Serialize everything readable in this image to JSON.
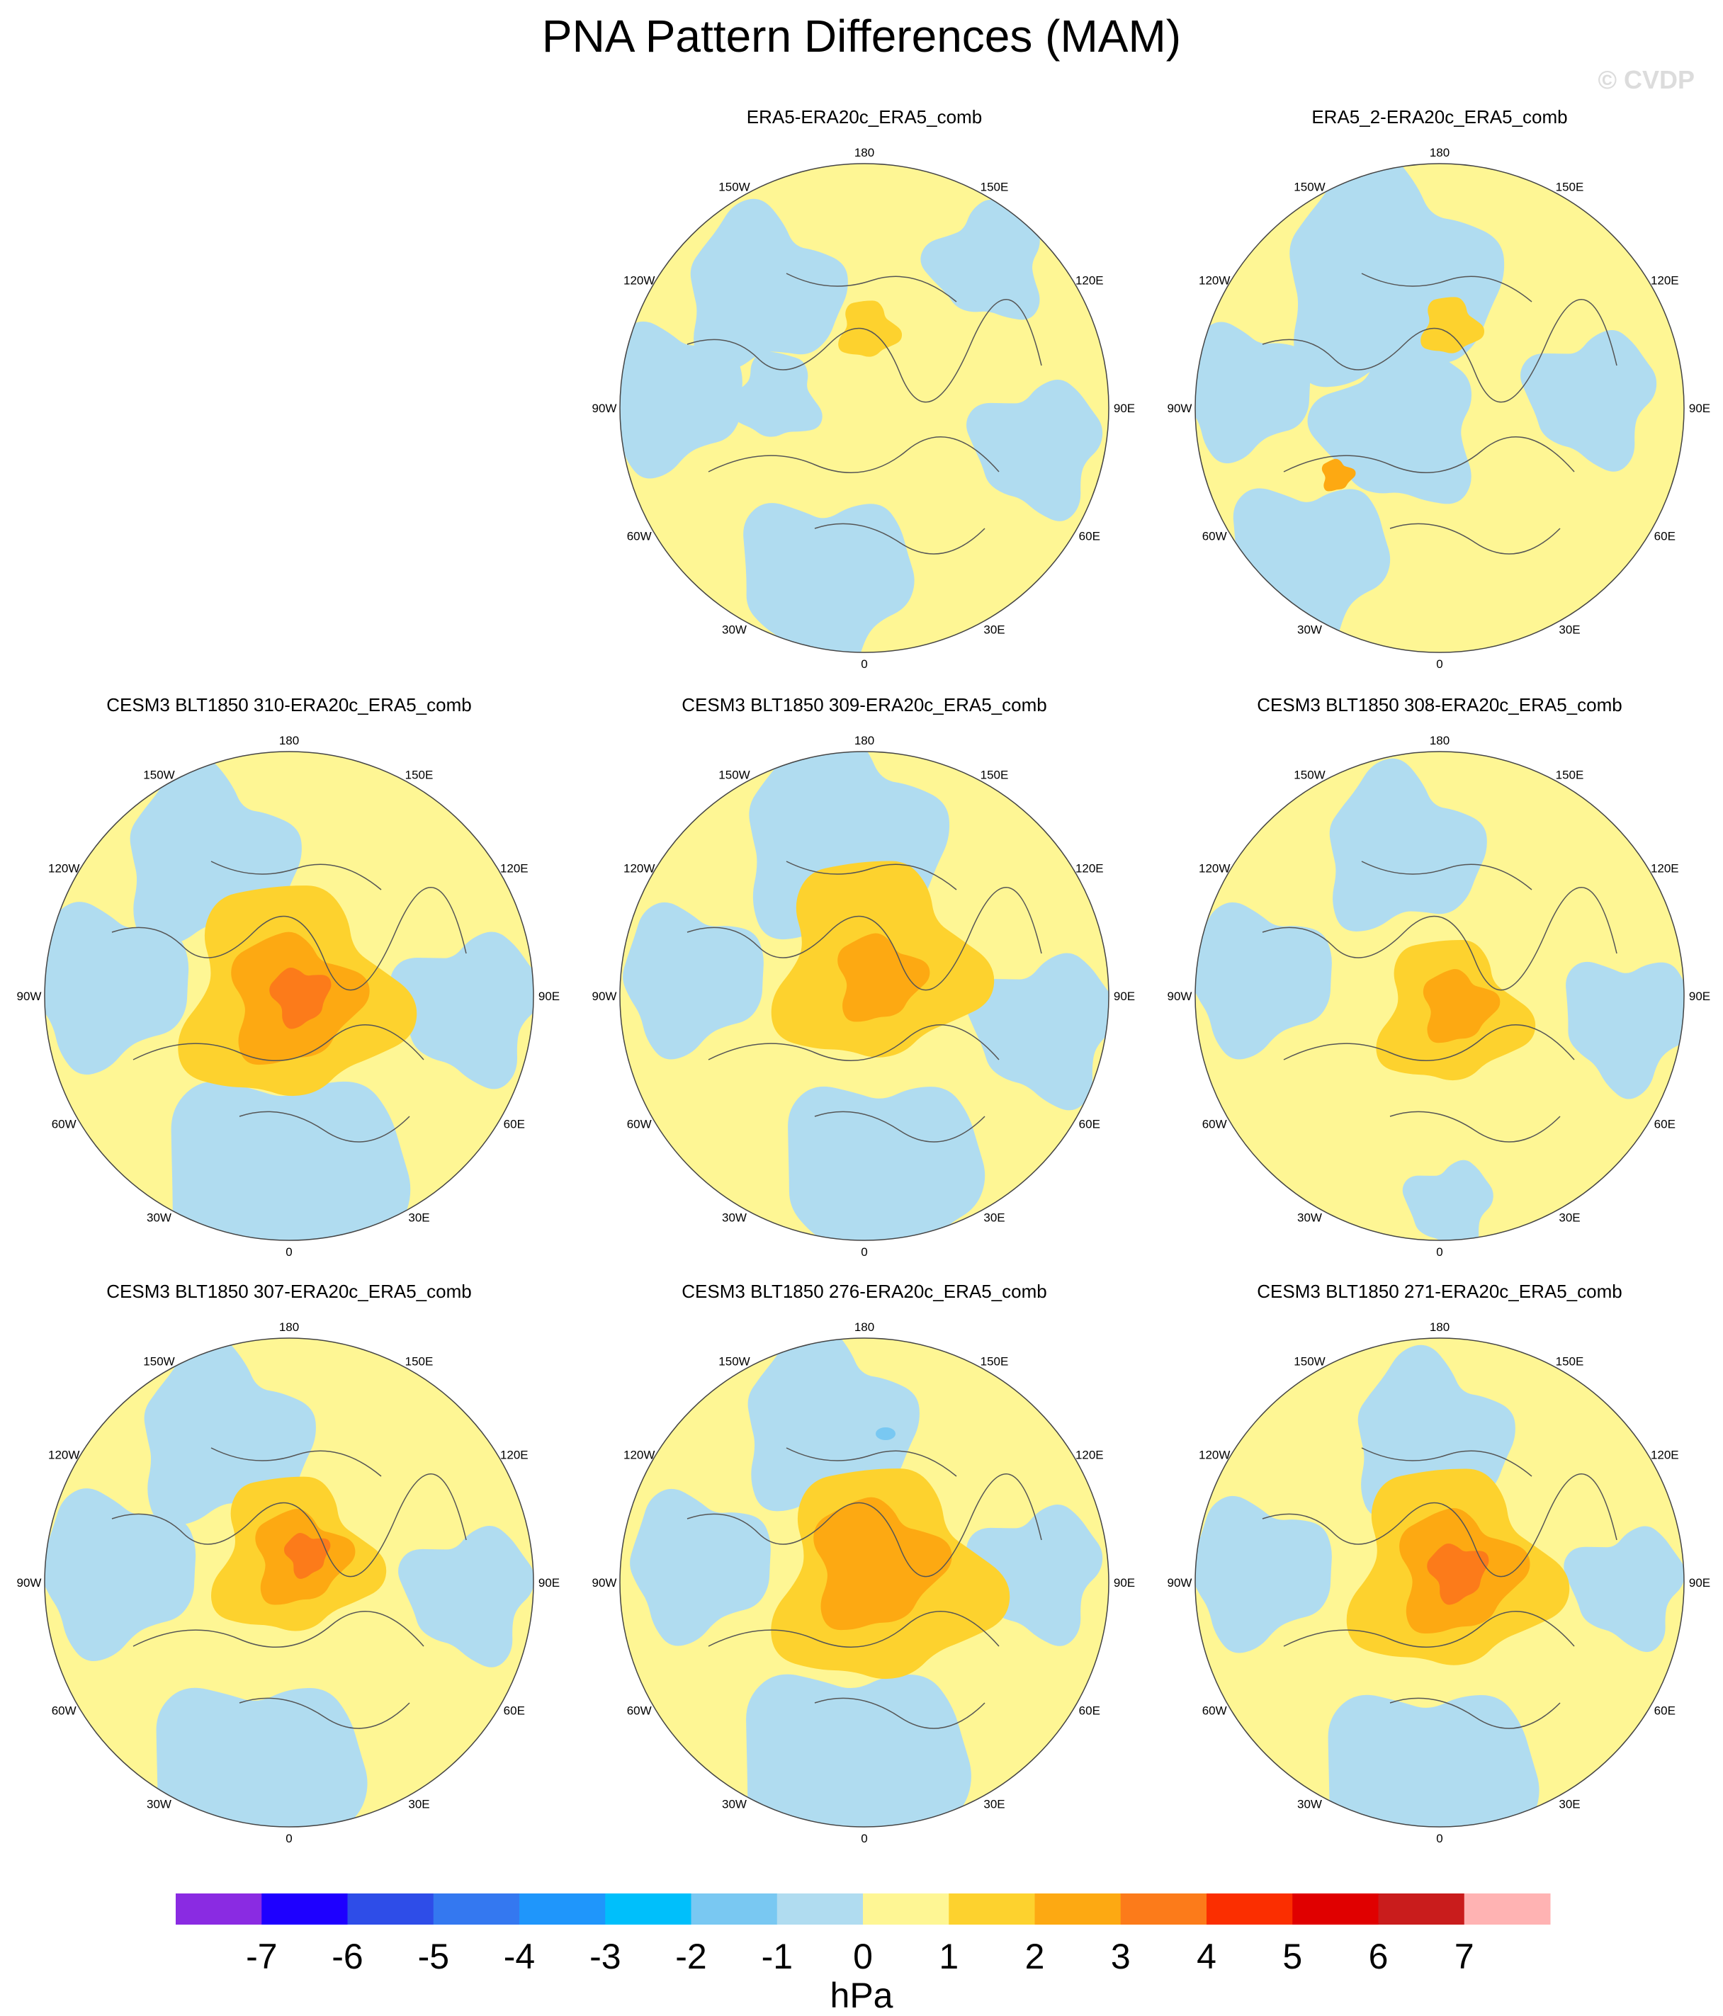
{
  "title": "PNA Pattern Differences (MAM)",
  "watermark": "© CVDP",
  "colors": {
    "neg1": "#b0dcf0",
    "pos1": "#fef694",
    "pos2": "#fdd22e",
    "pos3": "#fda912",
    "pos4": "#fc7b1a",
    "coast": "#555555"
  },
  "chart_data": {
    "type": "contour-map-grid",
    "projection": "north polar stereographic",
    "variable": "PNA pattern difference",
    "units": "hPa",
    "season": "MAM",
    "panels": [
      {
        "title": "ERA5-ERA20c_ERA5_comb",
        "max_positive": 2,
        "min_negative": -1
      },
      {
        "title": "ERA5_2-ERA20c_ERA5_comb",
        "max_positive": 2,
        "min_negative": -1
      },
      {
        "title": "CESM3 BLT1850 310-ERA20c_ERA5_comb",
        "max_positive": 4,
        "min_negative": -1
      },
      {
        "title": "CESM3 BLT1850 309-ERA20c_ERA5_comb",
        "max_positive": 3,
        "min_negative": -1
      },
      {
        "title": "CESM3 BLT1850 308-ERA20c_ERA5_comb",
        "max_positive": 3,
        "min_negative": -1
      },
      {
        "title": "CESM3 BLT1850 307-ERA20c_ERA5_comb",
        "max_positive": 4,
        "min_negative": -1
      },
      {
        "title": "CESM3 BLT1850 276-ERA20c_ERA5_comb",
        "max_positive": 3,
        "min_negative": -2
      },
      {
        "title": "CESM3 BLT1850 271-ERA20c_ERA5_comb",
        "max_positive": 4,
        "min_negative": -1
      }
    ],
    "longitude_labels": [
      "180",
      "150E",
      "120E",
      "90E",
      "60E",
      "30E",
      "0",
      "30W",
      "60W",
      "90W",
      "120W",
      "150W"
    ],
    "colorbar": {
      "levels": [
        "-7",
        "-6",
        "-5",
        "-4",
        "-3",
        "-2",
        "-1",
        "0",
        "1",
        "2",
        "3",
        "4",
        "5",
        "6",
        "7"
      ],
      "colors": [
        "#8a2be2",
        "#1e00ff",
        "#2e4de8",
        "#3478f0",
        "#1f96fb",
        "#00bffb",
        "#79c8f2",
        "#b0dcf0",
        "#fef694",
        "#fdd22e",
        "#fda912",
        "#fc7b1a",
        "#fb2e00",
        "#e00000",
        "#c91c1c",
        "#ffb3b3"
      ],
      "label": "hPa"
    }
  }
}
